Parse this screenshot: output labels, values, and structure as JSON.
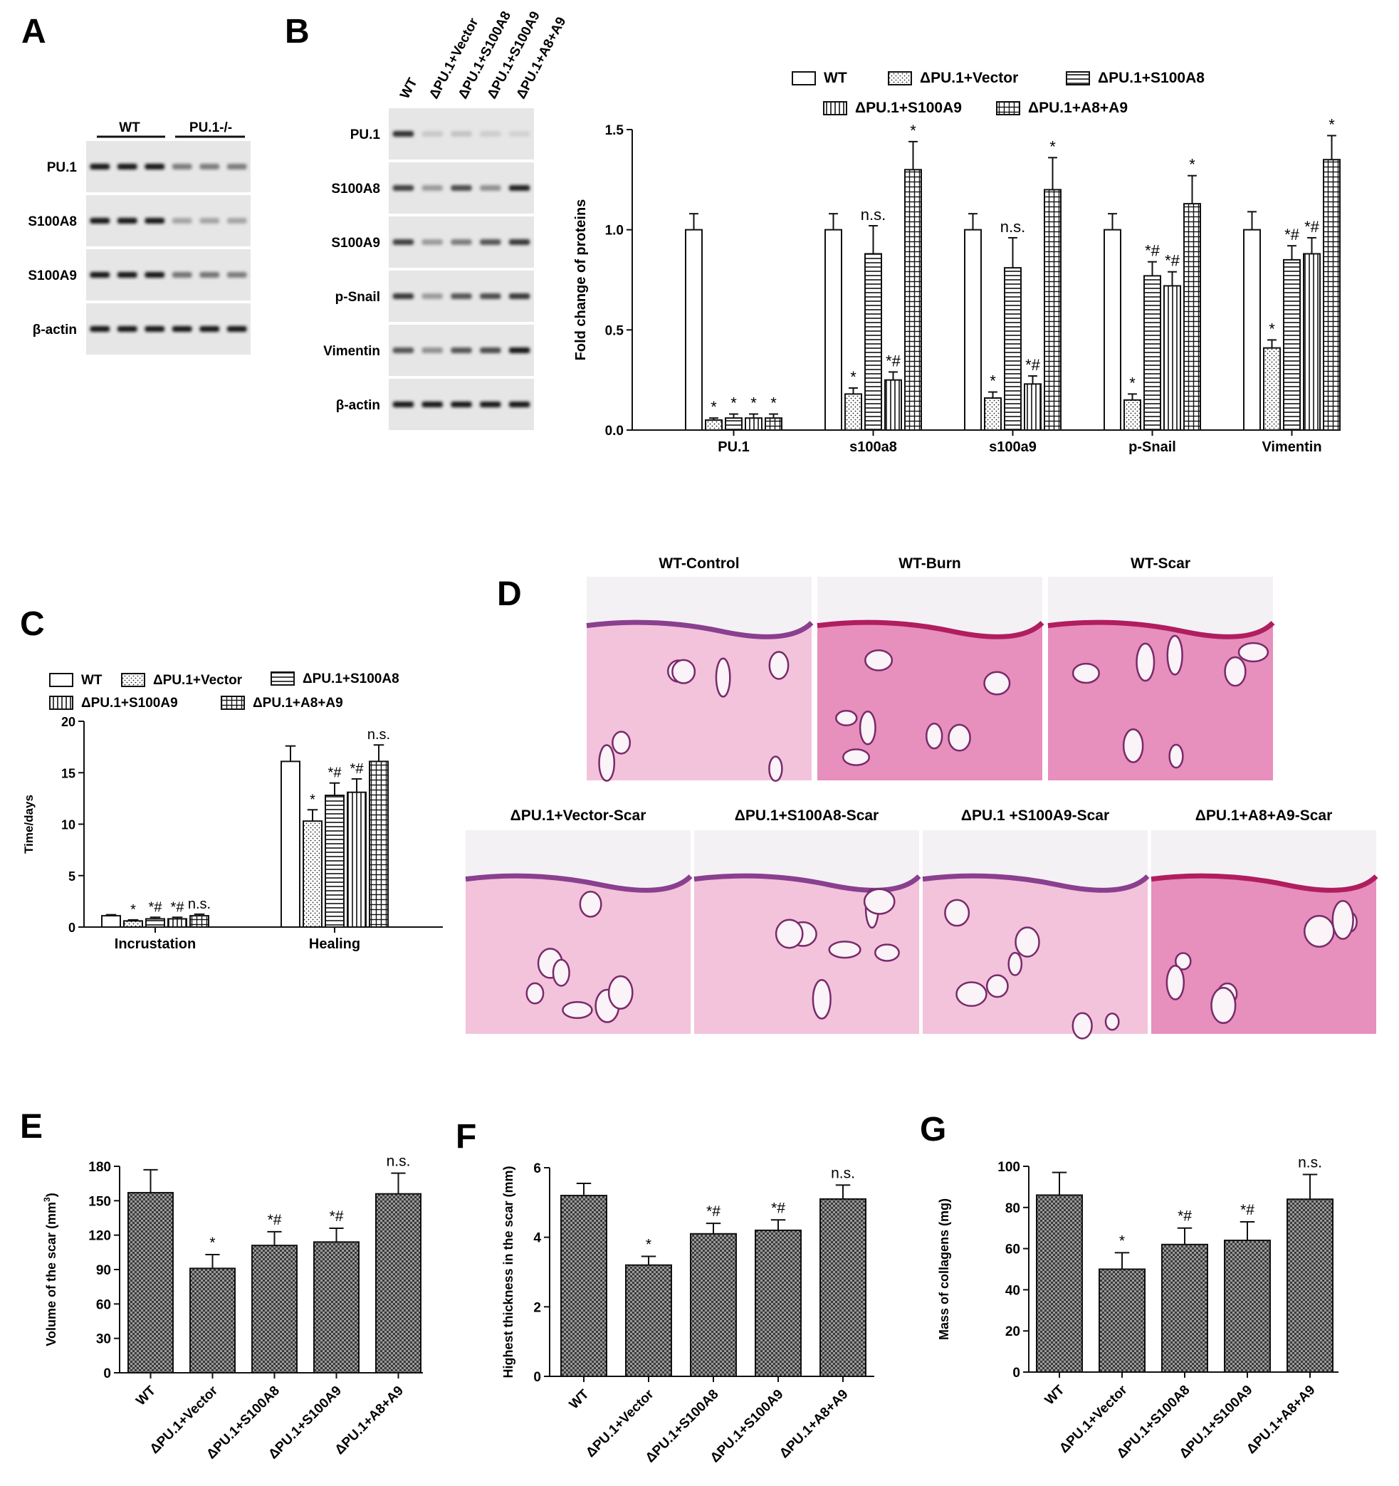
{
  "panels": {
    "A": {
      "letter": "A",
      "groups": [
        "WT",
        "PU.1-/-"
      ],
      "rows": [
        "PU.1",
        "S100A8",
        "S100A9",
        "β-actin"
      ],
      "band_intensity": [
        [
          1.0,
          1.0,
          1.0,
          0.5,
          0.5,
          0.5
        ],
        [
          1.0,
          1.0,
          1.0,
          0.3,
          0.3,
          0.3
        ],
        [
          1.0,
          1.0,
          1.0,
          0.55,
          0.55,
          0.5
        ],
        [
          1.0,
          1.0,
          1.0,
          1.0,
          1.0,
          1.0
        ]
      ]
    },
    "B": {
      "letter": "B",
      "lanes": [
        "WT",
        "ΔPU.1+Vector",
        "ΔPU.1+S100A8",
        "ΔPU.1+S100A9",
        "ΔPU.1+A8+A9"
      ],
      "rows": [
        "PU.1",
        "S100A8",
        "S100A9",
        "p-Snail",
        "Vimentin",
        "β-actin"
      ],
      "band_intensity": [
        [
          0.9,
          0.12,
          0.15,
          0.1,
          0.08
        ],
        [
          0.8,
          0.35,
          0.75,
          0.4,
          0.95
        ],
        [
          0.8,
          0.35,
          0.5,
          0.7,
          0.85
        ],
        [
          0.85,
          0.35,
          0.7,
          0.75,
          0.85
        ],
        [
          0.7,
          0.4,
          0.7,
          0.75,
          1.0
        ],
        [
          1.0,
          1.0,
          1.0,
          1.0,
          1.0
        ]
      ]
    },
    "C": {
      "letter": "C"
    },
    "D": {
      "letter": "D",
      "images_top": [
        "WT-Control",
        "WT-Burn",
        "WT-Scar"
      ],
      "images_bottom": [
        "ΔPU.1+Vector-Scar",
        "ΔPU.1+S100A8-Scar",
        "ΔPU.1 +S100A9-Scar",
        "ΔPU.1+A8+A9-Scar"
      ]
    },
    "E": {
      "letter": "E"
    },
    "F": {
      "letter": "F"
    },
    "G": {
      "letter": "G"
    }
  },
  "chart_data": [
    {
      "id": "B-quant",
      "type": "bar",
      "categories": [
        "PU.1",
        "s100a8",
        "s100a9",
        "p-Snail",
        "Vimentin"
      ],
      "series": [
        {
          "name": "WT",
          "values": [
            1.0,
            1.0,
            1.0,
            1.0,
            1.0
          ],
          "errors": [
            0.08,
            0.08,
            0.08,
            0.08,
            0.09
          ],
          "labels": [
            "",
            "",
            "",
            "",
            ""
          ]
        },
        {
          "name": "ΔPU.1+Vector",
          "values": [
            0.05,
            0.18,
            0.16,
            0.15,
            0.41
          ],
          "errors": [
            0.01,
            0.03,
            0.03,
            0.03,
            0.04
          ],
          "labels": [
            "*",
            "*",
            "*",
            "*",
            "*"
          ]
        },
        {
          "name": "ΔPU.1+S100A8",
          "values": [
            0.06,
            0.88,
            0.81,
            0.77,
            0.85
          ],
          "errors": [
            0.02,
            0.14,
            0.15,
            0.07,
            0.07
          ],
          "labels": [
            "*",
            "n.s.",
            "n.s.",
            "*#",
            "*#"
          ]
        },
        {
          "name": "ΔPU.1+S100A9",
          "values": [
            0.06,
            0.25,
            0.23,
            0.72,
            0.88
          ],
          "errors": [
            0.02,
            0.04,
            0.04,
            0.07,
            0.08
          ],
          "labels": [
            "*",
            "*#",
            "*#",
            "*#",
            "*#"
          ]
        },
        {
          "name": "ΔPU.1+A8+A9",
          "values": [
            0.06,
            1.3,
            1.2,
            1.13,
            1.35
          ],
          "errors": [
            0.02,
            0.14,
            0.16,
            0.14,
            0.12
          ],
          "labels": [
            "*",
            "*",
            "*",
            "*",
            "*"
          ]
        }
      ],
      "ylabel": "Fold change of proteins",
      "ylim": [
        0,
        1.5
      ],
      "yticks": [
        "0.0",
        "0.5",
        "1.0",
        "1.5"
      ],
      "legend": "top"
    },
    {
      "id": "C",
      "type": "bar",
      "categories": [
        "Incrustation",
        "Healing"
      ],
      "series": [
        {
          "name": "WT",
          "values": [
            1.1,
            16.1
          ],
          "errors": [
            0.1,
            1.5
          ],
          "labels": [
            "",
            ""
          ]
        },
        {
          "name": "ΔPU.1+Vector",
          "values": [
            0.6,
            10.3
          ],
          "errors": [
            0.1,
            1.1
          ],
          "labels": [
            "*",
            "*"
          ]
        },
        {
          "name": "ΔPU.1+S100A8",
          "values": [
            0.8,
            12.8
          ],
          "errors": [
            0.15,
            1.2
          ],
          "labels": [
            "*#",
            "*#"
          ]
        },
        {
          "name": "ΔPU.1+S100A9",
          "values": [
            0.8,
            13.1
          ],
          "errors": [
            0.15,
            1.3
          ],
          "labels": [
            "*#",
            "*#"
          ]
        },
        {
          "name": "ΔPU.1+A8+A9",
          "values": [
            1.1,
            16.1
          ],
          "errors": [
            0.15,
            1.6
          ],
          "labels": [
            "n.s.",
            "n.s."
          ]
        }
      ],
      "ylabel": "Time/days",
      "ylim": [
        0,
        20
      ],
      "yticks": [
        "0",
        "5",
        "10",
        "15",
        "20"
      ],
      "legend": "top"
    },
    {
      "id": "E",
      "type": "bar",
      "categories": [
        "WT",
        "ΔPU.1+Vector",
        "ΔPU.1+S100A8",
        "ΔPU.1+S100A9",
        "ΔPU.1+A8+A9"
      ],
      "values": [
        157,
        91,
        111,
        114,
        156
      ],
      "errors": [
        20,
        12,
        12,
        12,
        18
      ],
      "labels": [
        "",
        "*",
        "*#",
        "*#",
        "n.s."
      ],
      "ylabel": "Volume of the scar (mm",
      "ylabel_sup": "3",
      "ylabel_end": ")",
      "ylim": [
        0,
        180
      ],
      "yticks": [
        "0",
        "30",
        "60",
        "90",
        "120",
        "150",
        "180"
      ]
    },
    {
      "id": "F",
      "type": "bar",
      "categories": [
        "WT",
        "ΔPU.1+Vector",
        "ΔPU.1+S100A8",
        "ΔPU.1+S100A9",
        "ΔPU.1+A8+A9"
      ],
      "values": [
        5.2,
        3.2,
        4.1,
        4.2,
        5.1
      ],
      "errors": [
        0.35,
        0.25,
        0.3,
        0.3,
        0.4
      ],
      "labels": [
        "",
        "*",
        "*#",
        "*#",
        "n.s."
      ],
      "ylabel": "Highest thickness in the scar (mm)",
      "ylim": [
        0,
        6
      ],
      "yticks": [
        "0",
        "2",
        "4",
        "6"
      ]
    },
    {
      "id": "G",
      "type": "bar",
      "categories": [
        "WT",
        "ΔPU.1+Vector",
        "ΔPU.1+S100A8",
        "ΔPU.1+S100A9",
        "ΔPU.1+A8+A9"
      ],
      "values": [
        86,
        50,
        62,
        64,
        84
      ],
      "errors": [
        11,
        8,
        8,
        9,
        12
      ],
      "labels": [
        "",
        "*",
        "*#",
        "*#",
        "n.s."
      ],
      "ylabel": "Mass of collagens (mg)",
      "ylim": [
        0,
        100
      ],
      "yticks": [
        "0",
        "20",
        "40",
        "60",
        "80",
        "100"
      ]
    }
  ]
}
